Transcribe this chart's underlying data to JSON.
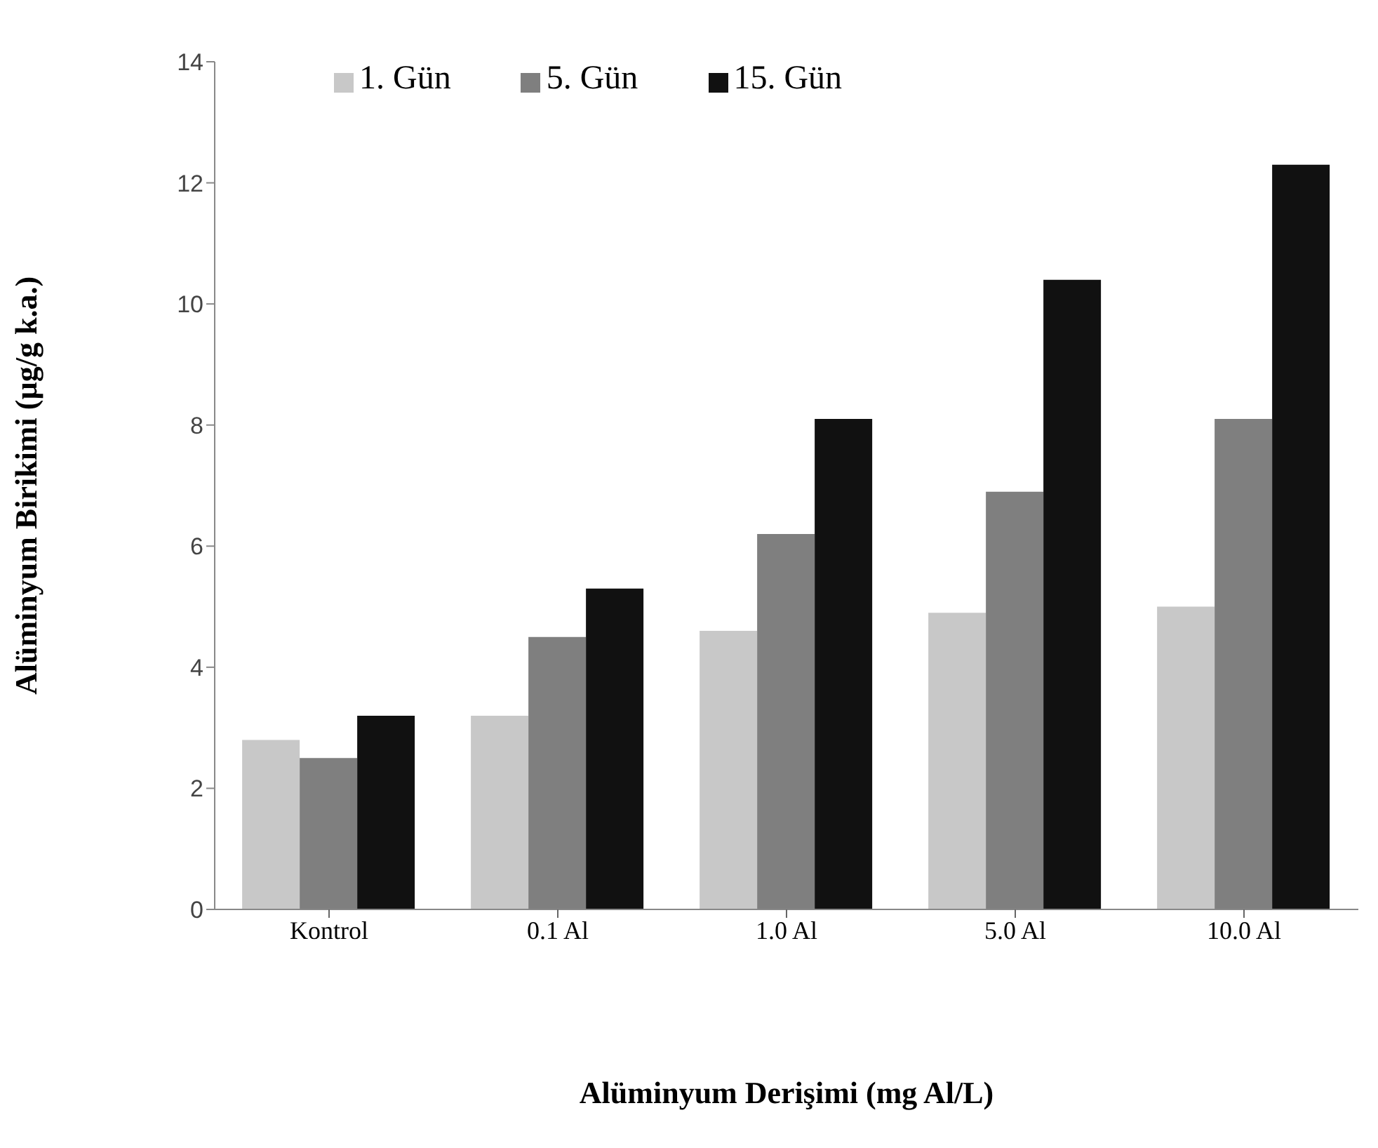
{
  "chart_data": {
    "type": "bar",
    "xlabel": "Alüminyum Derişimi (mg Al/L)",
    "ylabel": "Alüminyum Birikimi (µg/g k.a.)",
    "categories": [
      "Kontrol",
      "0.1 Al",
      "1.0 Al",
      "5.0 Al",
      "10.0 Al"
    ],
    "series": [
      {
        "name": "1. Gün",
        "color": "#c8c8c8",
        "values": [
          2.8,
          3.2,
          4.6,
          4.9,
          5.0
        ]
      },
      {
        "name": "5. Gün",
        "color": "#7f7f7f",
        "values": [
          2.5,
          4.5,
          6.2,
          6.9,
          8.1
        ]
      },
      {
        "name": "15. Gün",
        "color": "#111111",
        "values": [
          3.2,
          5.3,
          8.1,
          10.4,
          12.3
        ]
      }
    ],
    "ylim": [
      0,
      14
    ],
    "yticks": [
      0,
      2,
      4,
      6,
      8,
      10,
      12,
      14
    ],
    "grid": false,
    "legend": "top left"
  }
}
